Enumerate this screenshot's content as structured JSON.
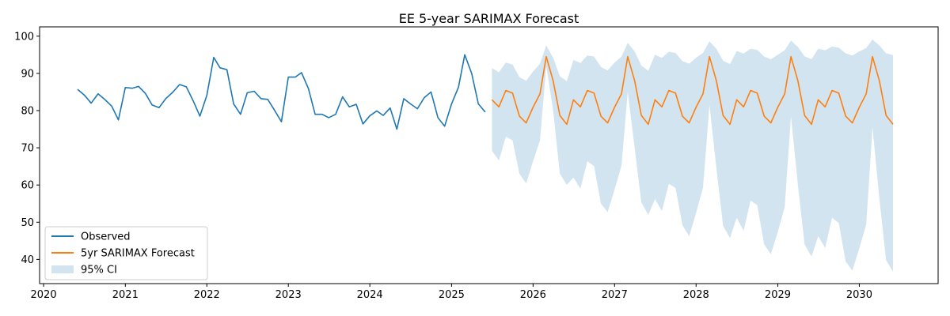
{
  "chart_data": {
    "type": "line",
    "title": "EE 5-year SARIMAX Forecast",
    "xlabel": "",
    "ylabel": "",
    "xlim": [
      "2019-12-14",
      "2030-12-20"
    ],
    "ylim": [
      33.5,
      102.5
    ],
    "x_ticks": [
      "2020",
      "2021",
      "2022",
      "2023",
      "2024",
      "2025",
      "2026",
      "2027",
      "2028",
      "2029",
      "2030"
    ],
    "y_ticks": [
      40,
      50,
      60,
      70,
      80,
      90,
      100
    ],
    "grid": false,
    "legend": "lower-left",
    "series": [
      {
        "name": "Observed",
        "color": "#1f77b4",
        "x": [
          "2020-06",
          "2020-07",
          "2020-08",
          "2020-09",
          "2020-10",
          "2020-11",
          "2020-12",
          "2021-01",
          "2021-02",
          "2021-03",
          "2021-04",
          "2021-05",
          "2021-06",
          "2021-07",
          "2021-08",
          "2021-09",
          "2021-10",
          "2021-11",
          "2021-12",
          "2022-01",
          "2022-02",
          "2022-03",
          "2022-04",
          "2022-05",
          "2022-06",
          "2022-07",
          "2022-08",
          "2022-09",
          "2022-10",
          "2022-11",
          "2022-12",
          "2023-01",
          "2023-02",
          "2023-03",
          "2023-04",
          "2023-05",
          "2023-06",
          "2023-07",
          "2023-08",
          "2023-09",
          "2023-10",
          "2023-11",
          "2023-12",
          "2024-01",
          "2024-02",
          "2024-03",
          "2024-04",
          "2024-05",
          "2024-06",
          "2024-07",
          "2024-08",
          "2024-09",
          "2024-10",
          "2024-11",
          "2024-12",
          "2025-01",
          "2025-02",
          "2025-03",
          "2025-04",
          "2025-05",
          "2025-06"
        ],
        "values": [
          85.7,
          84.2,
          82.0,
          84.5,
          83.0,
          81.2,
          77.5,
          86.2,
          86.0,
          86.5,
          84.6,
          81.5,
          80.8,
          83.2,
          84.9,
          87.0,
          86.4,
          82.6,
          78.5,
          84.1,
          94.3,
          91.5,
          91.0,
          81.8,
          79.0,
          84.8,
          85.2,
          83.2,
          83.0,
          80.0,
          77.0,
          89.0,
          89.0,
          90.2,
          85.9,
          79.0,
          79.0,
          78.1,
          79.0,
          83.7,
          81.0,
          81.7,
          76.4,
          78.6,
          79.9,
          78.7,
          80.7,
          75.0,
          83.2,
          81.8,
          80.5,
          83.5,
          85.0,
          78.1,
          75.8,
          81.8,
          86.3,
          95.0,
          90.0,
          81.8,
          79.6
        ]
      },
      {
        "name": "5yr SARIMAX Forecast",
        "color": "#ff7f0e",
        "x": [
          "2025-07",
          "2025-08",
          "2025-09",
          "2025-10",
          "2025-11",
          "2025-12",
          "2026-01",
          "2026-02",
          "2026-03",
          "2026-04",
          "2026-05",
          "2026-06",
          "2026-07",
          "2026-08",
          "2026-09",
          "2026-10",
          "2026-11",
          "2026-12",
          "2027-01",
          "2027-02",
          "2027-03",
          "2027-04",
          "2027-05",
          "2027-06",
          "2027-07",
          "2027-08",
          "2027-09",
          "2027-10",
          "2027-11",
          "2027-12",
          "2028-01",
          "2028-02",
          "2028-03",
          "2028-04",
          "2028-05",
          "2028-06",
          "2028-07",
          "2028-08",
          "2028-09",
          "2028-10",
          "2028-11",
          "2028-12",
          "2029-01",
          "2029-02",
          "2029-03",
          "2029-04",
          "2029-05",
          "2029-06",
          "2029-07",
          "2029-08",
          "2029-09",
          "2029-10",
          "2029-11",
          "2029-12",
          "2030-01",
          "2030-02",
          "2030-03",
          "2030-04",
          "2030-05",
          "2030-06"
        ],
        "values": [
          82.9,
          81.0,
          85.4,
          84.7,
          78.5,
          76.7,
          80.9,
          84.5,
          94.5,
          88.0,
          78.7,
          76.3,
          82.9,
          81.0,
          85.4,
          84.7,
          78.5,
          76.7,
          80.9,
          84.5,
          94.5,
          88.0,
          78.7,
          76.3,
          82.9,
          81.0,
          85.4,
          84.7,
          78.5,
          76.7,
          80.9,
          84.5,
          94.5,
          88.0,
          78.7,
          76.3,
          82.9,
          81.0,
          85.4,
          84.7,
          78.5,
          76.7,
          80.9,
          84.5,
          94.5,
          88.0,
          78.7,
          76.3,
          82.9,
          81.0,
          85.4,
          84.7,
          78.5,
          76.7,
          80.9,
          84.5,
          94.5,
          88.0,
          78.7,
          76.3
        ]
      }
    ],
    "ci": {
      "name": "95% CI",
      "color": "#1f77b4",
      "opacity": 0.2,
      "x": [
        "2025-07",
        "2025-08",
        "2025-09",
        "2025-10",
        "2025-11",
        "2025-12",
        "2026-01",
        "2026-02",
        "2026-03",
        "2026-04",
        "2026-05",
        "2026-06",
        "2026-07",
        "2026-08",
        "2026-09",
        "2026-10",
        "2026-11",
        "2026-12",
        "2027-01",
        "2027-02",
        "2027-03",
        "2027-04",
        "2027-05",
        "2027-06",
        "2027-07",
        "2027-08",
        "2027-09",
        "2027-10",
        "2027-11",
        "2027-12",
        "2028-01",
        "2028-02",
        "2028-03",
        "2028-04",
        "2028-05",
        "2028-06",
        "2028-07",
        "2028-08",
        "2028-09",
        "2028-10",
        "2028-11",
        "2028-12",
        "2029-01",
        "2029-02",
        "2029-03",
        "2029-04",
        "2029-05",
        "2029-06",
        "2029-07",
        "2029-08",
        "2029-09",
        "2029-10",
        "2029-11",
        "2029-12",
        "2030-01",
        "2030-02",
        "2030-03",
        "2030-04",
        "2030-05",
        "2030-06"
      ],
      "upper": [
        91.4,
        90.3,
        92.9,
        92.4,
        89.0,
        88.0,
        90.5,
        92.6,
        97.5,
        94.2,
        89.2,
        87.9,
        93.6,
        92.8,
        94.8,
        94.5,
        91.7,
        90.8,
        92.9,
        94.5,
        98.2,
        95.9,
        92.1,
        90.7,
        95.0,
        94.2,
        95.8,
        95.5,
        93.3,
        92.6,
        94.2,
        95.5,
        98.6,
        96.6,
        93.4,
        92.5,
        96.0,
        95.3,
        96.6,
        96.3,
        94.5,
        93.8,
        95.0,
        96.2,
        98.8,
        97.1,
        94.6,
        93.8,
        96.6,
        96.2,
        97.2,
        96.9,
        95.4,
        94.8,
        95.9,
        96.8,
        99.1,
        97.5,
        95.4,
        94.9
      ],
      "lower": [
        69.2,
        66.6,
        73.0,
        72.0,
        63.0,
        60.4,
        66.4,
        72.0,
        92.0,
        80.0,
        63.0,
        60.0,
        62.0,
        59.0,
        66.4,
        65.1,
        55.0,
        52.7,
        58.8,
        65.2,
        85.0,
        70.0,
        55.3,
        52.0,
        56.2,
        53.0,
        60.3,
        59.2,
        49.2,
        46.2,
        52.5,
        59.3,
        81.5,
        64.5,
        49.0,
        45.8,
        51.2,
        47.7,
        55.8,
        54.6,
        44.0,
        41.4,
        47.4,
        54.1,
        78.5,
        60.0,
        44.0,
        40.8,
        46.3,
        43.1,
        51.2,
        49.8,
        39.4,
        37.0,
        43.0,
        49.4,
        75.5,
        56.3,
        39.8,
        36.7
      ]
    }
  }
}
